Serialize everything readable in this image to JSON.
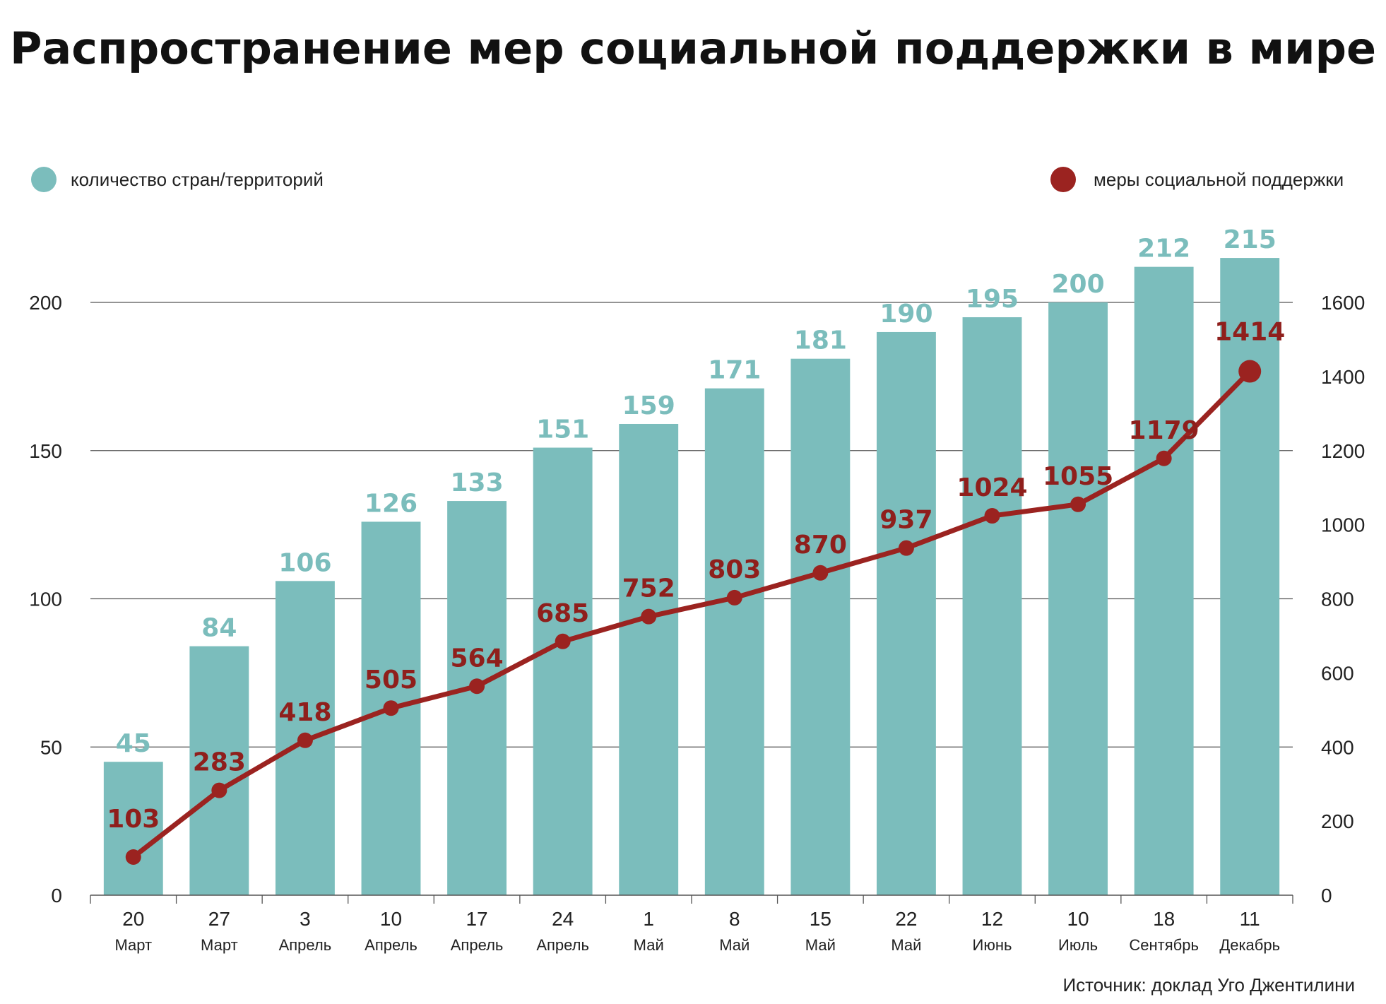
{
  "title": "Распространение мер социальной поддержки в мире",
  "source": "Источник: доклад Уго Джентилини",
  "legend": {
    "bars_label": "количество стран/территорий",
    "line_label": "меры  социальной поддержки"
  },
  "colors": {
    "bar": "#7bbdbc",
    "line": "#9b2320",
    "bar_label": "#7bbdbc",
    "line_label": "#8f1f1c",
    "grid": "#555555"
  },
  "chart_data": {
    "type": "bar+line",
    "title": "Распространение мер социальной поддержки в мире",
    "categories": [
      {
        "day": "20",
        "month": "Март"
      },
      {
        "day": "27",
        "month": "Март"
      },
      {
        "day": "3",
        "month": "Апрель"
      },
      {
        "day": "10",
        "month": "Апрель"
      },
      {
        "day": "17",
        "month": "Апрель"
      },
      {
        "day": "24",
        "month": "Апрель"
      },
      {
        "day": "1",
        "month": "Май"
      },
      {
        "day": "8",
        "month": "Май"
      },
      {
        "day": "15",
        "month": "Май"
      },
      {
        "day": "22",
        "month": "Май"
      },
      {
        "day": "12",
        "month": "Июнь"
      },
      {
        "day": "10",
        "month": "Июль"
      },
      {
        "day": "18",
        "month": "Сентябрь"
      },
      {
        "day": "11",
        "month": "Декабрь"
      }
    ],
    "series": [
      {
        "name": "количество стран/территорий",
        "type": "bar",
        "axis": "left",
        "values": [
          45,
          84,
          106,
          126,
          133,
          151,
          159,
          171,
          181,
          190,
          195,
          200,
          212,
          215
        ]
      },
      {
        "name": "меры  социальной поддержки",
        "type": "line",
        "axis": "right",
        "values": [
          103,
          283,
          418,
          505,
          564,
          685,
          752,
          803,
          870,
          937,
          1024,
          1055,
          1179,
          1414
        ]
      }
    ],
    "y_left": {
      "min": 0,
      "max": 200,
      "ticks": [
        0,
        50,
        100,
        150,
        200
      ]
    },
    "y_right": {
      "min": 0,
      "max": 1600,
      "ticks": [
        0,
        200,
        400,
        600,
        800,
        1000,
        1200,
        1400,
        1600
      ]
    },
    "grid": true,
    "legend_position": "top"
  }
}
